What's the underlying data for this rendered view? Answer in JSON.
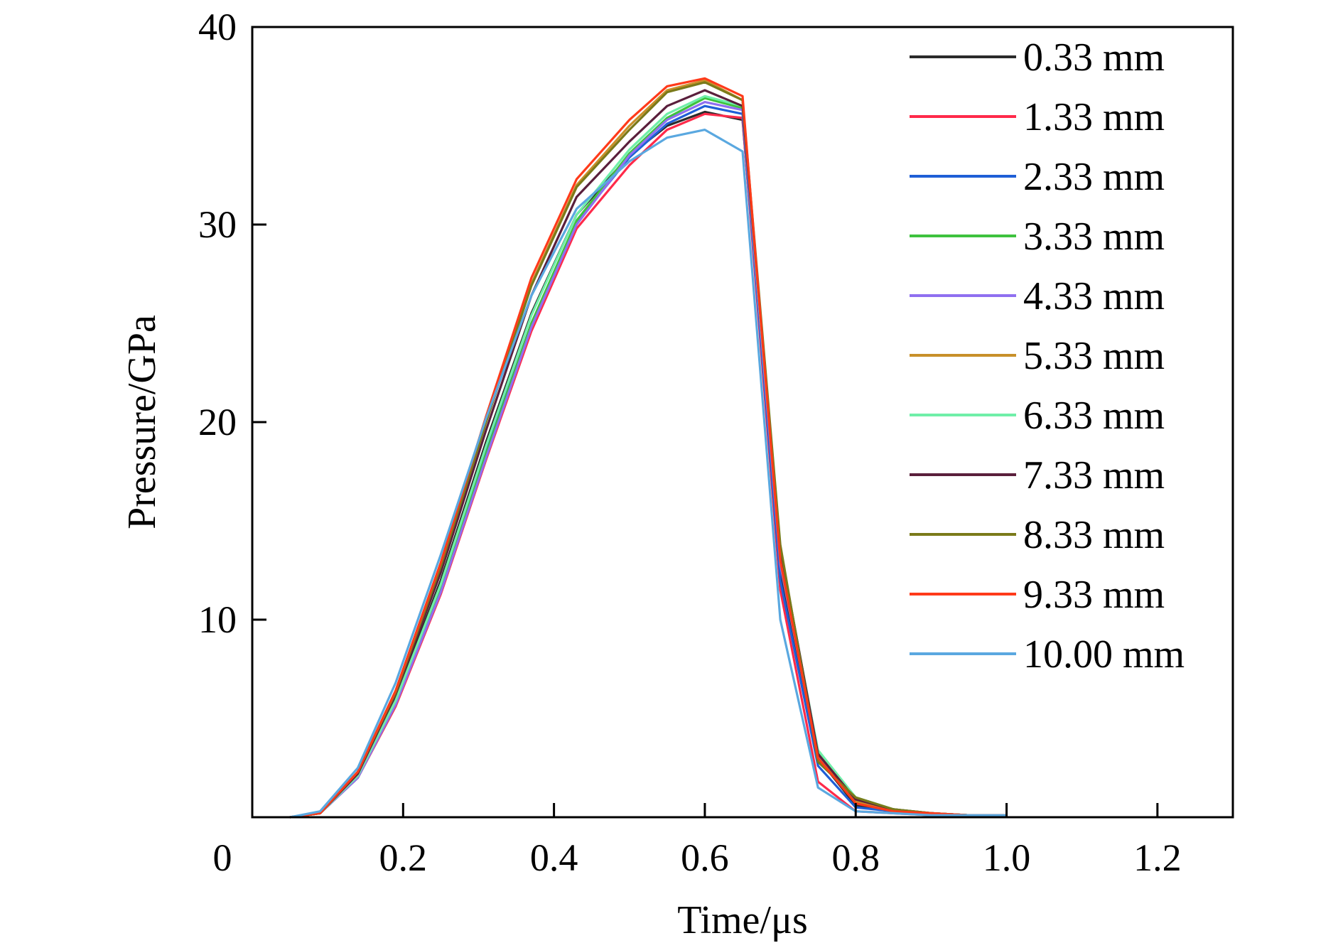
{
  "chart_data": {
    "type": "line",
    "xlabel": "Time/μs",
    "ylabel": "Pressure/GPa",
    "xlim": [
      0,
      1.3
    ],
    "ylim": [
      0,
      40
    ],
    "x_ticks": [
      {
        "value": 0,
        "label": "0"
      },
      {
        "value": 0.2,
        "label": "0.2"
      },
      {
        "value": 0.4,
        "label": "0.4"
      },
      {
        "value": 0.6,
        "label": "0.6"
      },
      {
        "value": 0.8,
        "label": "0.8"
      },
      {
        "value": 1.0,
        "label": "1.0"
      },
      {
        "value": 1.2,
        "label": "1.2"
      }
    ],
    "y_ticks": [
      {
        "value": 10,
        "label": "10"
      },
      {
        "value": 20,
        "label": "20"
      },
      {
        "value": 30,
        "label": "30"
      },
      {
        "value": 40,
        "label": "40"
      }
    ],
    "grid": false,
    "legend_position": "top-right",
    "series": [
      {
        "name": "0.33 mm",
        "color": "#2b2b2b",
        "x": [
          0.05,
          0.09,
          0.14,
          0.19,
          0.25,
          0.31,
          0.37,
          0.43,
          0.5,
          0.55,
          0.6,
          0.65,
          0.7,
          0.75,
          0.8,
          0.85,
          0.9,
          0.95,
          1.0
        ],
        "y": [
          0,
          0.2,
          2.2,
          6.0,
          12.0,
          19.0,
          25.5,
          30.5,
          33.5,
          35.0,
          35.7,
          35.3,
          12.5,
          3.0,
          0.6,
          0.3,
          0.2,
          0.1,
          0.1
        ]
      },
      {
        "name": "1.33 mm",
        "color": "#ff2a4a",
        "x": [
          0.05,
          0.09,
          0.14,
          0.19,
          0.25,
          0.31,
          0.37,
          0.43,
          0.5,
          0.55,
          0.6,
          0.65,
          0.7,
          0.75,
          0.8,
          0.85,
          0.9,
          0.95,
          1.0
        ],
        "y": [
          0,
          0.2,
          2.0,
          5.6,
          11.3,
          18.1,
          24.6,
          29.8,
          33.0,
          34.8,
          35.6,
          35.4,
          11.5,
          1.8,
          0.3,
          0.2,
          0.1,
          0.1,
          0.1
        ]
      },
      {
        "name": "2.33 mm",
        "color": "#1f5fd6",
        "x": [
          0.05,
          0.09,
          0.14,
          0.19,
          0.25,
          0.31,
          0.37,
          0.43,
          0.5,
          0.55,
          0.6,
          0.65,
          0.7,
          0.75,
          0.8,
          0.85,
          0.9,
          0.95,
          1.0
        ],
        "y": [
          0,
          0.2,
          2.1,
          5.8,
          11.6,
          18.5,
          25.0,
          30.1,
          33.4,
          35.1,
          36.0,
          35.6,
          12.0,
          2.6,
          0.5,
          0.3,
          0.2,
          0.1,
          0.1
        ]
      },
      {
        "name": "3.33 mm",
        "color": "#3ec23e",
        "x": [
          0.05,
          0.09,
          0.14,
          0.19,
          0.25,
          0.31,
          0.37,
          0.43,
          0.5,
          0.55,
          0.6,
          0.65,
          0.7,
          0.75,
          0.8,
          0.85,
          0.9,
          0.95,
          1.0
        ],
        "y": [
          0,
          0.2,
          2.0,
          5.7,
          11.5,
          18.4,
          25.0,
          30.2,
          33.6,
          35.4,
          36.4,
          35.9,
          13.5,
          3.3,
          1.0,
          0.4,
          0.2,
          0.1,
          0.1
        ]
      },
      {
        "name": "4.33 mm",
        "color": "#8f6ff0",
        "x": [
          0.05,
          0.09,
          0.14,
          0.19,
          0.25,
          0.31,
          0.37,
          0.43,
          0.5,
          0.55,
          0.6,
          0.65,
          0.7,
          0.75,
          0.8,
          0.85,
          0.9,
          0.95,
          1.0
        ],
        "y": [
          0,
          0.2,
          2.0,
          5.7,
          11.4,
          18.2,
          24.8,
          30.0,
          33.5,
          35.3,
          36.2,
          35.8,
          12.8,
          3.1,
          0.8,
          0.3,
          0.2,
          0.1,
          0.1
        ]
      },
      {
        "name": "5.33 mm",
        "color": "#c8902a",
        "x": [
          0.05,
          0.09,
          0.14,
          0.19,
          0.25,
          0.31,
          0.37,
          0.43,
          0.5,
          0.55,
          0.6,
          0.65,
          0.7,
          0.75,
          0.8,
          0.85,
          0.9,
          0.95,
          1.0
        ],
        "y": [
          0,
          0.2,
          2.3,
          6.4,
          12.8,
          20.2,
          27.0,
          32.0,
          35.0,
          36.8,
          37.3,
          36.3,
          13.0,
          3.0,
          0.8,
          0.3,
          0.2,
          0.1,
          0.1
        ]
      },
      {
        "name": "6.33 mm",
        "color": "#6fefa8",
        "x": [
          0.05,
          0.09,
          0.14,
          0.19,
          0.25,
          0.31,
          0.37,
          0.43,
          0.5,
          0.55,
          0.6,
          0.65,
          0.7,
          0.75,
          0.8,
          0.85,
          0.9,
          0.95,
          1.0
        ],
        "y": [
          0,
          0.2,
          2.1,
          5.9,
          11.8,
          18.8,
          25.4,
          30.5,
          33.8,
          35.6,
          36.5,
          36.0,
          13.2,
          3.4,
          1.0,
          0.4,
          0.2,
          0.1,
          0.1
        ]
      },
      {
        "name": "7.33 mm",
        "color": "#5a1f3c",
        "x": [
          0.05,
          0.09,
          0.14,
          0.19,
          0.25,
          0.31,
          0.37,
          0.43,
          0.5,
          0.55,
          0.6,
          0.65,
          0.7,
          0.75,
          0.8,
          0.85,
          0.9,
          0.95,
          1.0
        ],
        "y": [
          0,
          0.2,
          2.2,
          6.2,
          12.4,
          19.6,
          26.4,
          31.4,
          34.2,
          36.0,
          36.8,
          36.0,
          13.6,
          3.2,
          0.9,
          0.4,
          0.2,
          0.1,
          0.1
        ]
      },
      {
        "name": "8.33 mm",
        "color": "#7a7a1a",
        "x": [
          0.05,
          0.09,
          0.14,
          0.19,
          0.25,
          0.31,
          0.37,
          0.43,
          0.5,
          0.55,
          0.6,
          0.65,
          0.7,
          0.75,
          0.8,
          0.85,
          0.9,
          0.95,
          1.0
        ],
        "y": [
          0,
          0.2,
          2.3,
          6.3,
          12.7,
          20.0,
          26.9,
          31.9,
          34.8,
          36.7,
          37.2,
          36.3,
          13.8,
          2.8,
          1.0,
          0.4,
          0.2,
          0.1,
          0.1
        ]
      },
      {
        "name": "9.33 mm",
        "color": "#ff3a1a",
        "x": [
          0.05,
          0.09,
          0.14,
          0.19,
          0.25,
          0.31,
          0.37,
          0.43,
          0.5,
          0.55,
          0.6,
          0.65,
          0.7,
          0.75,
          0.8,
          0.85,
          0.9,
          0.95,
          1.0
        ],
        "y": [
          0,
          0.2,
          2.3,
          6.4,
          12.9,
          20.3,
          27.3,
          32.3,
          35.3,
          37.0,
          37.4,
          36.5,
          13.0,
          3.0,
          0.7,
          0.3,
          0.2,
          0.1,
          0.1
        ]
      },
      {
        "name": "10.00 mm",
        "color": "#5aa8e0",
        "x": [
          0.05,
          0.09,
          0.14,
          0.19,
          0.25,
          0.31,
          0.37,
          0.43,
          0.5,
          0.55,
          0.6,
          0.65,
          0.7,
          0.75,
          0.8,
          0.85,
          0.9,
          0.95,
          1.0
        ],
        "y": [
          0,
          0.3,
          2.5,
          6.8,
          13.3,
          20.2,
          26.4,
          30.8,
          33.2,
          34.4,
          34.8,
          33.7,
          10.0,
          1.5,
          0.3,
          0.2,
          0.1,
          0.1,
          0.1
        ]
      }
    ]
  }
}
